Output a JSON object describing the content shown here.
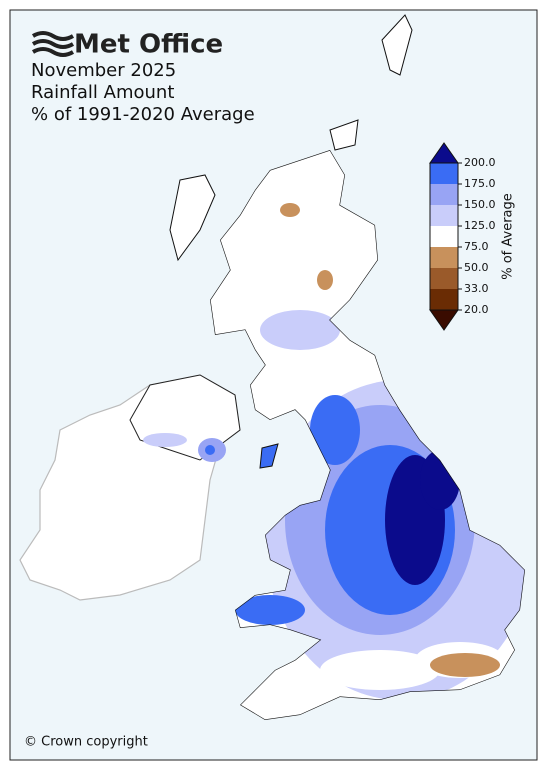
{
  "header": {
    "logo": "Met Office",
    "lines": [
      "November 2025",
      "Rainfall Amount",
      "% of 1991-2020 Average"
    ]
  },
  "legend": {
    "title": "% of Average",
    "ticks": [
      {
        "value": 200,
        "label": "200.0"
      },
      {
        "value": 175,
        "label": "175.0"
      },
      {
        "value": 150,
        "label": "150.0"
      },
      {
        "value": 125,
        "label": "125.0"
      },
      {
        "value": 75,
        "label": "75.0"
      },
      {
        "value": 50,
        "label": "50.0"
      },
      {
        "value": 33,
        "label": "33.0"
      },
      {
        "value": 20,
        "label": "20.0"
      }
    ],
    "colors": [
      "#0b0b8c",
      "#3a6cf4",
      "#98a4f4",
      "#c9cdfa",
      "#ffffff",
      "#c8915c",
      "#9a5a2a",
      "#6a2c04",
      "#3a0c00"
    ]
  },
  "footer": {
    "copyright": "© Crown copyright"
  }
}
